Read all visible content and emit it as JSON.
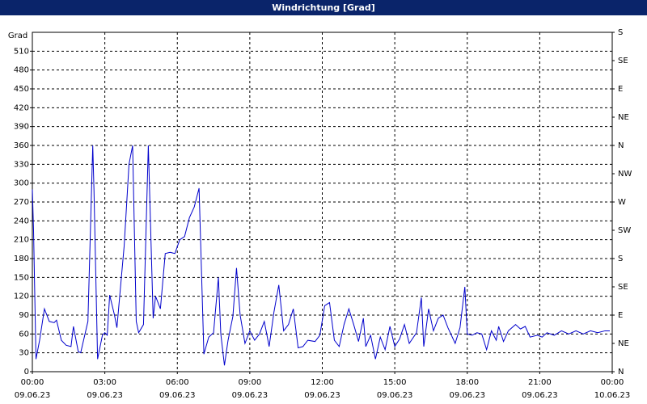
{
  "chart_data": {
    "type": "line",
    "title": "Windrichtung [Grad]",
    "ylabel": "Grad",
    "x": [
      0.0,
      0.05,
      0.15,
      0.3,
      0.5,
      0.7,
      0.9,
      1.0,
      1.2,
      1.4,
      1.6,
      1.7,
      1.9,
      2.0,
      2.3,
      2.5,
      2.55,
      2.7,
      2.9,
      3.0,
      3.1,
      3.2,
      3.4,
      3.5,
      3.8,
      4.0,
      4.15,
      4.3,
      4.4,
      4.6,
      4.8,
      5.0,
      5.1,
      5.3,
      5.5,
      5.7,
      5.9,
      6.1,
      6.3,
      6.5,
      6.7,
      6.9,
      7.1,
      7.3,
      7.5,
      7.7,
      7.8,
      7.95,
      8.1,
      8.3,
      8.45,
      8.6,
      8.8,
      9.0,
      9.2,
      9.4,
      9.6,
      9.8,
      10.0,
      10.2,
      10.4,
      10.6,
      10.8,
      11.0,
      11.2,
      11.4,
      11.7,
      11.9,
      12.1,
      12.3,
      12.5,
      12.7,
      12.9,
      13.1,
      13.3,
      13.5,
      13.7,
      13.8,
      14.0,
      14.2,
      14.4,
      14.6,
      14.8,
      15.0,
      15.2,
      15.4,
      15.6,
      15.9,
      16.1,
      16.2,
      16.4,
      16.6,
      16.8,
      17.0,
      17.2,
      17.5,
      17.7,
      17.9,
      18.0,
      18.2,
      18.4,
      18.6,
      18.8,
      19.0,
      19.2,
      19.3,
      19.5,
      19.7,
      20.0,
      20.2,
      20.4,
      20.6,
      20.9,
      21.1,
      21.3,
      21.6,
      21.9,
      22.2,
      22.5,
      22.8,
      23.1,
      23.4,
      23.7,
      23.9
    ],
    "values": [
      290,
      225,
      20,
      50,
      100,
      80,
      78,
      82,
      50,
      42,
      40,
      72,
      32,
      30,
      80,
      360,
      290,
      20,
      58,
      62,
      58,
      122,
      90,
      70,
      200,
      330,
      360,
      80,
      62,
      75,
      360,
      85,
      120,
      100,
      188,
      190,
      188,
      210,
      215,
      245,
      262,
      292,
      28,
      55,
      62,
      150,
      60,
      10,
      50,
      88,
      165,
      90,
      45,
      65,
      50,
      60,
      80,
      40,
      95,
      138,
      65,
      75,
      100,
      38,
      40,
      50,
      48,
      58,
      105,
      110,
      50,
      40,
      75,
      100,
      75,
      48,
      85,
      40,
      58,
      20,
      55,
      35,
      72,
      40,
      52,
      75,
      45,
      62,
      118,
      40,
      100,
      65,
      85,
      90,
      70,
      45,
      70,
      135,
      60,
      58,
      62,
      60,
      35,
      65,
      50,
      72,
      48,
      65,
      75,
      68,
      72,
      55,
      58,
      55,
      62,
      58,
      65,
      60,
      65,
      60,
      65,
      62,
      65,
      65
    ],
    "color": "#0000cc",
    "xlim": [
      0,
      24
    ],
    "xticks": [
      {
        "value": 0,
        "label": "00:00"
      },
      {
        "value": 3,
        "label": "03:00"
      },
      {
        "value": 6,
        "label": "06:00"
      },
      {
        "value": 9,
        "label": "09:00"
      },
      {
        "value": 12,
        "label": "12:00"
      },
      {
        "value": 15,
        "label": "15:00"
      },
      {
        "value": 18,
        "label": "18:00"
      },
      {
        "value": 21,
        "label": "21:00"
      },
      {
        "value": 24,
        "label": "00:00"
      }
    ],
    "xtick_dates": [
      "09.06.23",
      "09.06.23",
      "09.06.23",
      "09.06.23",
      "09.06.23",
      "09.06.23",
      "09.06.23",
      "09.06.23",
      "10.06.23"
    ],
    "ylim": [
      0,
      540
    ],
    "yticks": [
      0,
      30,
      60,
      90,
      120,
      150,
      180,
      210,
      240,
      270,
      300,
      330,
      360,
      390,
      420,
      450,
      480,
      510
    ],
    "y2lim": [
      0,
      540
    ],
    "y2ticks": [
      {
        "value": 0,
        "label": "N"
      },
      {
        "value": 45,
        "label": "NE"
      },
      {
        "value": 90,
        "label": "E"
      },
      {
        "value": 135,
        "label": "SE"
      },
      {
        "value": 180,
        "label": "S"
      },
      {
        "value": 225,
        "label": "SW"
      },
      {
        "value": 270,
        "label": "W"
      },
      {
        "value": 315,
        "label": "NW"
      },
      {
        "value": 360,
        "label": "N"
      },
      {
        "value": 405,
        "label": "NE"
      },
      {
        "value": 450,
        "label": "E"
      },
      {
        "value": 495,
        "label": "SE"
      },
      {
        "value": 540,
        "label": "S"
      }
    ],
    "grid": true
  }
}
